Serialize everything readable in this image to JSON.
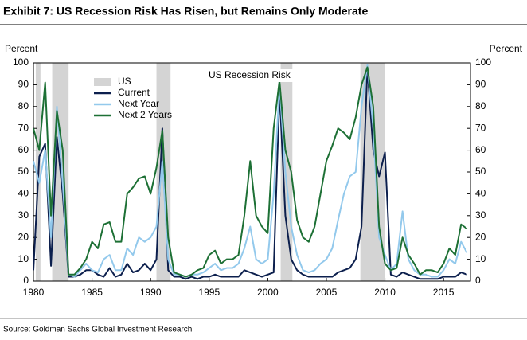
{
  "chart_data": {
    "type": "line",
    "title": "Exhibit 7: US Recession Risk Has Risen, but Remains Only Moderate",
    "annotation": "US Recession Risk",
    "y_label": "Percent",
    "y2_label": "Percent",
    "source": "Source: Goldman Sachs Global Investment Research",
    "x": [
      1980,
      1980.5,
      1981,
      1981.5,
      1982,
      1982.5,
      1983,
      1983.5,
      1984,
      1984.5,
      1985,
      1985.5,
      1986,
      1986.5,
      1987,
      1987.5,
      1988,
      1988.5,
      1989,
      1989.5,
      1990,
      1990.5,
      1991,
      1991.5,
      1992,
      1992.5,
      1993,
      1993.5,
      1994,
      1994.5,
      1995,
      1995.5,
      1996,
      1996.5,
      1997,
      1997.5,
      1998,
      1998.5,
      1999,
      1999.5,
      2000,
      2000.5,
      2001,
      2001.5,
      2002,
      2002.5,
      2003,
      2003.5,
      2004,
      2004.5,
      2005,
      2005.5,
      2006,
      2006.5,
      2007,
      2007.5,
      2008,
      2008.5,
      2009,
      2009.5,
      2010,
      2010.5,
      2011,
      2011.5,
      2012,
      2012.5,
      2013,
      2013.5,
      2014,
      2014.5,
      2015,
      2015.5,
      2016,
      2016.5,
      2017
    ],
    "shading": {
      "name": "US",
      "color": "#d4d4d4",
      "periods": [
        [
          1980.2,
          1980.6
        ],
        [
          1981.6,
          1983.0
        ],
        [
          1990.5,
          1991.7
        ],
        [
          2001.1,
          2002.1
        ],
        [
          2007.9,
          2010.0
        ]
      ]
    },
    "series": [
      {
        "name": "Current",
        "color": "#0c1f4d",
        "values": [
          5,
          57,
          63,
          7,
          66,
          40,
          2,
          2,
          3,
          5,
          5,
          3,
          2,
          6,
          2,
          3,
          8,
          4,
          5,
          8,
          5,
          10,
          70,
          5,
          2,
          2,
          1,
          2,
          1,
          2,
          2,
          3,
          2,
          2,
          2,
          2,
          5,
          4,
          3,
          2,
          3,
          4,
          87,
          30,
          10,
          5,
          3,
          2,
          2,
          2,
          2,
          2,
          4,
          5,
          6,
          10,
          25,
          98,
          60,
          48,
          59,
          3,
          2,
          4,
          3,
          2,
          1,
          1,
          1,
          1,
          2,
          2,
          2,
          4,
          3
        ]
      },
      {
        "name": "Next Year",
        "color": "#93c9ec",
        "values": [
          55,
          45,
          60,
          20,
          80,
          45,
          3,
          2,
          5,
          8,
          5,
          4,
          10,
          12,
          5,
          5,
          15,
          12,
          20,
          18,
          20,
          25,
          55,
          10,
          3,
          3,
          2,
          3,
          3,
          4,
          6,
          8,
          5,
          6,
          6,
          8,
          15,
          25,
          10,
          8,
          10,
          40,
          90,
          50,
          25,
          12,
          5,
          4,
          5,
          8,
          10,
          15,
          28,
          40,
          48,
          50,
          80,
          99,
          70,
          20,
          12,
          5,
          8,
          32,
          10,
          5,
          3,
          3,
          2,
          2,
          5,
          10,
          8,
          18,
          13
        ]
      },
      {
        "name": "Next 2 Years",
        "color": "#1d7035",
        "values": [
          70,
          60,
          91,
          30,
          78,
          60,
          3,
          3,
          6,
          10,
          18,
          15,
          26,
          27,
          18,
          18,
          40,
          43,
          47,
          48,
          40,
          52,
          69,
          20,
          4,
          3,
          2,
          3,
          5,
          6,
          12,
          14,
          8,
          10,
          10,
          12,
          30,
          55,
          30,
          25,
          22,
          70,
          92,
          60,
          50,
          28,
          20,
          18,
          25,
          40,
          55,
          62,
          70,
          68,
          65,
          75,
          90,
          98,
          80,
          25,
          8,
          5,
          6,
          20,
          12,
          8,
          3,
          5,
          5,
          4,
          8,
          15,
          12,
          26,
          24
        ]
      }
    ],
    "xlim": [
      1980,
      2017.3
    ],
    "xticks": [
      1980,
      1985,
      1990,
      1995,
      2000,
      2005,
      2010,
      2015
    ],
    "ylim": [
      0,
      100
    ],
    "yticks": [
      0,
      10,
      20,
      30,
      40,
      50,
      60,
      70,
      80,
      90,
      100
    ],
    "y2lim": [
      0,
      100
    ],
    "y2ticks": [
      0,
      10,
      20,
      30,
      40,
      50,
      60,
      70,
      80,
      90,
      100
    ]
  }
}
